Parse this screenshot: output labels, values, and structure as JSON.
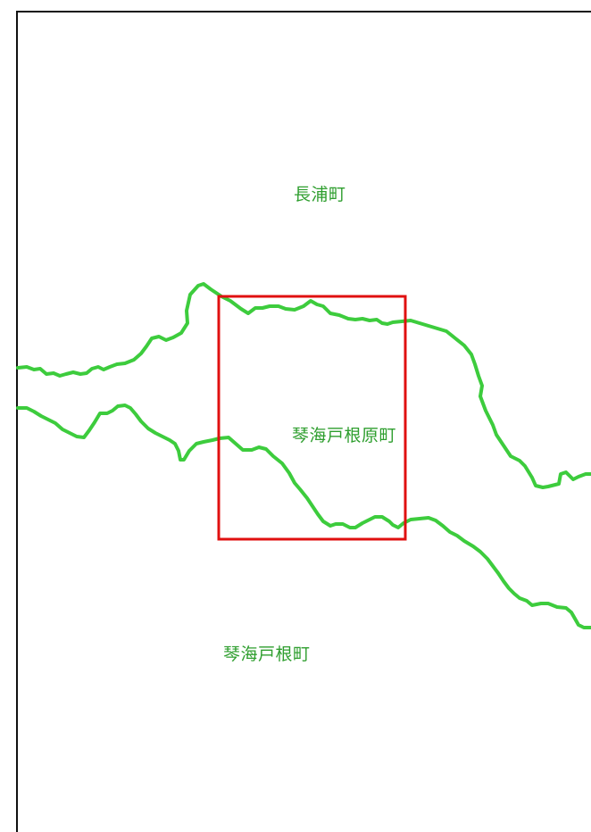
{
  "map": {
    "labels": {
      "north": "長浦町",
      "center": "琴海戸根原町",
      "south": "琴海戸根町"
    },
    "colors": {
      "boundary_line": "#3dcc3d",
      "label_text": "#2e9e2e",
      "highlight_box": "#e01010",
      "frame": "#111111",
      "background": "#ffffff"
    },
    "highlighted_area": "琴海戸根原町"
  }
}
